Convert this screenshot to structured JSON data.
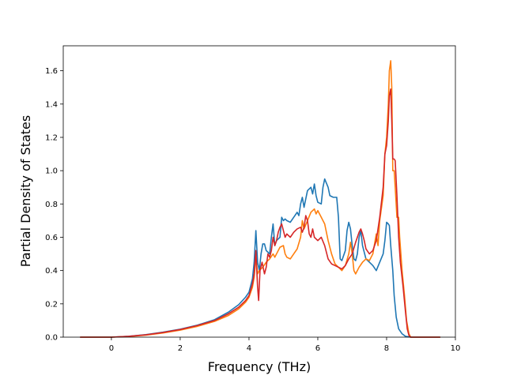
{
  "chart_data": {
    "type": "line",
    "title": "",
    "xlabel": "Frequency (THz)",
    "ylabel": "Partial Density of States",
    "xlim": [
      -1.4,
      10.0
    ],
    "ylim": [
      0.0,
      1.75
    ],
    "grid": false,
    "x_ticks": [
      0,
      2,
      4,
      6,
      8,
      10
    ],
    "x_tick_labels": [
      "0",
      "2",
      "4",
      "6",
      "8",
      "10"
    ],
    "y_ticks": [
      0.0,
      0.2,
      0.4,
      0.6,
      0.8,
      1.0,
      1.2,
      1.4,
      1.6
    ],
    "y_tick_labels": [
      "0.0",
      "0.2",
      "0.4",
      "0.6",
      "0.8",
      "1.0",
      "1.2",
      "1.4",
      "1.6"
    ],
    "series": [
      {
        "color": "#1f77b4",
        "points": [
          [
            -0.9,
            0
          ],
          [
            0,
            0
          ],
          [
            0.5,
            0.005
          ],
          [
            1,
            0.015
          ],
          [
            1.5,
            0.03
          ],
          [
            2,
            0.048
          ],
          [
            2.5,
            0.072
          ],
          [
            3,
            0.105
          ],
          [
            3.4,
            0.15
          ],
          [
            3.7,
            0.195
          ],
          [
            3.9,
            0.24
          ],
          [
            4.0,
            0.27
          ],
          [
            4.1,
            0.35
          ],
          [
            4.15,
            0.45
          ],
          [
            4.2,
            0.64
          ],
          [
            4.25,
            0.45
          ],
          [
            4.3,
            0.4
          ],
          [
            4.35,
            0.5
          ],
          [
            4.4,
            0.56
          ],
          [
            4.45,
            0.56
          ],
          [
            4.5,
            0.52
          ],
          [
            4.6,
            0.5
          ],
          [
            4.65,
            0.6
          ],
          [
            4.7,
            0.68
          ],
          [
            4.75,
            0.55
          ],
          [
            4.8,
            0.58
          ],
          [
            4.9,
            0.6
          ],
          [
            4.95,
            0.72
          ],
          [
            5.0,
            0.7
          ],
          [
            5.05,
            0.71
          ],
          [
            5.1,
            0.7
          ],
          [
            5.2,
            0.69
          ],
          [
            5.3,
            0.72
          ],
          [
            5.4,
            0.75
          ],
          [
            5.45,
            0.73
          ],
          [
            5.5,
            0.8
          ],
          [
            5.55,
            0.84
          ],
          [
            5.6,
            0.78
          ],
          [
            5.7,
            0.88
          ],
          [
            5.8,
            0.9
          ],
          [
            5.85,
            0.86
          ],
          [
            5.9,
            0.92
          ],
          [
            5.95,
            0.85
          ],
          [
            6.0,
            0.81
          ],
          [
            6.1,
            0.8
          ],
          [
            6.15,
            0.9
          ],
          [
            6.2,
            0.95
          ],
          [
            6.3,
            0.9
          ],
          [
            6.35,
            0.85
          ],
          [
            6.45,
            0.84
          ],
          [
            6.55,
            0.84
          ],
          [
            6.6,
            0.72
          ],
          [
            6.65,
            0.47
          ],
          [
            6.7,
            0.46
          ],
          [
            6.8,
            0.52
          ],
          [
            6.85,
            0.64
          ],
          [
            6.9,
            0.69
          ],
          [
            6.95,
            0.65
          ],
          [
            7.0,
            0.55
          ],
          [
            7.05,
            0.47
          ],
          [
            7.1,
            0.46
          ],
          [
            7.15,
            0.5
          ],
          [
            7.2,
            0.6
          ],
          [
            7.25,
            0.64
          ],
          [
            7.3,
            0.55
          ],
          [
            7.4,
            0.47
          ],
          [
            7.5,
            0.45
          ],
          [
            7.6,
            0.43
          ],
          [
            7.7,
            0.4
          ],
          [
            7.8,
            0.45
          ],
          [
            7.9,
            0.5
          ],
          [
            7.95,
            0.58
          ],
          [
            8.0,
            0.69
          ],
          [
            8.05,
            0.68
          ],
          [
            8.08,
            0.67
          ],
          [
            8.12,
            0.55
          ],
          [
            8.18,
            0.4
          ],
          [
            8.22,
            0.25
          ],
          [
            8.28,
            0.12
          ],
          [
            8.35,
            0.05
          ],
          [
            8.45,
            0.02
          ],
          [
            8.55,
            0.005
          ],
          [
            8.7,
            0
          ],
          [
            9.0,
            0
          ],
          [
            9.55,
            0
          ]
        ]
      },
      {
        "color": "#ff7f0e",
        "points": [
          [
            -0.9,
            0
          ],
          [
            0,
            0
          ],
          [
            0.5,
            0.004
          ],
          [
            1,
            0.012
          ],
          [
            1.5,
            0.025
          ],
          [
            2,
            0.042
          ],
          [
            2.5,
            0.065
          ],
          [
            3,
            0.095
          ],
          [
            3.4,
            0.13
          ],
          [
            3.7,
            0.17
          ],
          [
            3.9,
            0.21
          ],
          [
            4.0,
            0.24
          ],
          [
            4.1,
            0.3
          ],
          [
            4.15,
            0.36
          ],
          [
            4.2,
            0.48
          ],
          [
            4.25,
            0.38
          ],
          [
            4.3,
            0.4
          ],
          [
            4.4,
            0.42
          ],
          [
            4.5,
            0.45
          ],
          [
            4.6,
            0.47
          ],
          [
            4.7,
            0.5
          ],
          [
            4.75,
            0.48
          ],
          [
            4.8,
            0.5
          ],
          [
            4.9,
            0.54
          ],
          [
            5.0,
            0.55
          ],
          [
            5.05,
            0.5
          ],
          [
            5.1,
            0.48
          ],
          [
            5.2,
            0.47
          ],
          [
            5.3,
            0.5
          ],
          [
            5.4,
            0.53
          ],
          [
            5.5,
            0.6
          ],
          [
            5.55,
            0.7
          ],
          [
            5.6,
            0.65
          ],
          [
            5.7,
            0.7
          ],
          [
            5.8,
            0.75
          ],
          [
            5.9,
            0.77
          ],
          [
            5.95,
            0.74
          ],
          [
            6.0,
            0.76
          ],
          [
            6.1,
            0.72
          ],
          [
            6.2,
            0.68
          ],
          [
            6.3,
            0.58
          ],
          [
            6.4,
            0.5
          ],
          [
            6.5,
            0.44
          ],
          [
            6.6,
            0.42
          ],
          [
            6.7,
            0.4
          ],
          [
            6.8,
            0.43
          ],
          [
            6.9,
            0.5
          ],
          [
            6.95,
            0.57
          ],
          [
            7.0,
            0.5
          ],
          [
            7.05,
            0.4
          ],
          [
            7.1,
            0.38
          ],
          [
            7.2,
            0.42
          ],
          [
            7.3,
            0.45
          ],
          [
            7.4,
            0.47
          ],
          [
            7.5,
            0.46
          ],
          [
            7.6,
            0.5
          ],
          [
            7.65,
            0.56
          ],
          [
            7.7,
            0.62
          ],
          [
            7.75,
            0.55
          ],
          [
            7.8,
            0.7
          ],
          [
            7.9,
            0.85
          ],
          [
            7.95,
            1.1
          ],
          [
            8.0,
            1.2
          ],
          [
            8.05,
            1.4
          ],
          [
            8.08,
            1.6
          ],
          [
            8.12,
            1.66
          ],
          [
            8.15,
            1.5
          ],
          [
            8.18,
            1.0
          ],
          [
            8.22,
            1.0
          ],
          [
            8.25,
            0.9
          ],
          [
            8.3,
            0.72
          ],
          [
            8.35,
            0.72
          ],
          [
            8.38,
            0.6
          ],
          [
            8.45,
            0.4
          ],
          [
            8.52,
            0.25
          ],
          [
            8.58,
            0.1
          ],
          [
            8.65,
            0.02
          ],
          [
            8.7,
            0
          ],
          [
            9.0,
            0
          ],
          [
            9.55,
            0
          ]
        ]
      },
      {
        "color": "#d62728",
        "points": [
          [
            -0.9,
            0
          ],
          [
            0,
            0
          ],
          [
            0.5,
            0.005
          ],
          [
            1,
            0.014
          ],
          [
            1.5,
            0.028
          ],
          [
            2,
            0.046
          ],
          [
            2.5,
            0.07
          ],
          [
            3,
            0.1
          ],
          [
            3.4,
            0.14
          ],
          [
            3.7,
            0.18
          ],
          [
            3.9,
            0.22
          ],
          [
            4.0,
            0.25
          ],
          [
            4.1,
            0.32
          ],
          [
            4.15,
            0.38
          ],
          [
            4.2,
            0.52
          ],
          [
            4.25,
            0.3
          ],
          [
            4.28,
            0.22
          ],
          [
            4.32,
            0.4
          ],
          [
            4.38,
            0.45
          ],
          [
            4.45,
            0.38
          ],
          [
            4.5,
            0.42
          ],
          [
            4.55,
            0.5
          ],
          [
            4.6,
            0.48
          ],
          [
            4.65,
            0.52
          ],
          [
            4.7,
            0.6
          ],
          [
            4.75,
            0.55
          ],
          [
            4.8,
            0.58
          ],
          [
            4.85,
            0.63
          ],
          [
            4.9,
            0.66
          ],
          [
            4.95,
            0.68
          ],
          [
            5.0,
            0.64
          ],
          [
            5.05,
            0.6
          ],
          [
            5.1,
            0.62
          ],
          [
            5.2,
            0.6
          ],
          [
            5.3,
            0.63
          ],
          [
            5.4,
            0.65
          ],
          [
            5.5,
            0.66
          ],
          [
            5.55,
            0.63
          ],
          [
            5.6,
            0.66
          ],
          [
            5.65,
            0.73
          ],
          [
            5.7,
            0.7
          ],
          [
            5.75,
            0.62
          ],
          [
            5.8,
            0.6
          ],
          [
            5.85,
            0.65
          ],
          [
            5.9,
            0.6
          ],
          [
            6.0,
            0.58
          ],
          [
            6.1,
            0.6
          ],
          [
            6.2,
            0.55
          ],
          [
            6.3,
            0.47
          ],
          [
            6.4,
            0.44
          ],
          [
            6.5,
            0.43
          ],
          [
            6.6,
            0.42
          ],
          [
            6.7,
            0.41
          ],
          [
            6.8,
            0.43
          ],
          [
            6.9,
            0.47
          ],
          [
            7.0,
            0.5
          ],
          [
            7.1,
            0.57
          ],
          [
            7.2,
            0.63
          ],
          [
            7.25,
            0.65
          ],
          [
            7.3,
            0.62
          ],
          [
            7.35,
            0.58
          ],
          [
            7.4,
            0.53
          ],
          [
            7.5,
            0.5
          ],
          [
            7.6,
            0.52
          ],
          [
            7.7,
            0.58
          ],
          [
            7.8,
            0.72
          ],
          [
            7.9,
            0.9
          ],
          [
            7.95,
            1.1
          ],
          [
            8.0,
            1.15
          ],
          [
            8.05,
            1.3
          ],
          [
            8.08,
            1.45
          ],
          [
            8.12,
            1.49
          ],
          [
            8.15,
            1.3
          ],
          [
            8.18,
            1.07
          ],
          [
            8.22,
            1.07
          ],
          [
            8.25,
            1.06
          ],
          [
            8.3,
            0.85
          ],
          [
            8.35,
            0.6
          ],
          [
            8.4,
            0.45
          ],
          [
            8.48,
            0.3
          ],
          [
            8.55,
            0.15
          ],
          [
            8.6,
            0.05
          ],
          [
            8.65,
            0.01
          ],
          [
            8.7,
            0
          ],
          [
            9.0,
            0
          ],
          [
            9.55,
            0
          ]
        ]
      }
    ]
  }
}
